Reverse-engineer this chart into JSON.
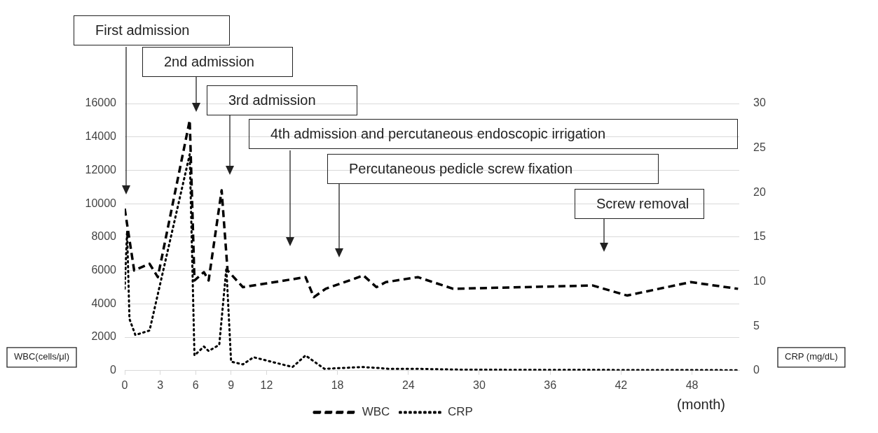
{
  "chart_data": {
    "type": "line",
    "xlabel": "(month)",
    "ylabel": "WBC(cells/μl)",
    "y2label": "CRP (mg/dL)",
    "xlim": [
      0,
      52
    ],
    "xticks": [
      0,
      3,
      6,
      9,
      12,
      18,
      24,
      30,
      36,
      42,
      48
    ],
    "ylim": [
      0,
      16000
    ],
    "yticks": [
      0,
      2000,
      4000,
      6000,
      8000,
      10000,
      12000,
      14000,
      16000
    ],
    "y2lim": [
      0,
      30
    ],
    "y2ticks": [
      0,
      5,
      10,
      15,
      20,
      25,
      30
    ],
    "grid": "y",
    "legend": "bottom",
    "marker": "none",
    "series": [
      {
        "name": "WBC",
        "color": "#000000",
        "line_style": "dashed",
        "axis": "y",
        "x": [
          0,
          0.8,
          2.1,
          2.8,
          5.5,
          5.9,
          6.7,
          7.1,
          8.2,
          8.7,
          10.0,
          15.3,
          16.0,
          17.0,
          20.2,
          21.3,
          22.1,
          24.8,
          27.8,
          39.6,
          42.5,
          47.9,
          51.9
        ],
        "values": [
          9700,
          6000,
          6400,
          5600,
          15000,
          5400,
          5900,
          5400,
          10800,
          6000,
          5000,
          5600,
          4400,
          4900,
          5700,
          5000,
          5300,
          5600,
          4900,
          5100,
          4500,
          5300,
          4900
        ]
      },
      {
        "name": "CRP",
        "color": "#000000",
        "line_style": "dotted",
        "axis": "y2",
        "x": [
          0,
          0.2,
          0.4,
          0.9,
          2.1,
          5.5,
          5.9,
          6.7,
          7.1,
          8.0,
          8.6,
          9.0,
          10.0,
          10.9,
          14.2,
          15.3,
          16.9,
          20.1,
          21.4,
          22.3,
          24.8,
          28.6,
          51.9
        ],
        "values": [
          9.2,
          15.7,
          5.8,
          4.0,
          4.5,
          24.3,
          1.7,
          2.7,
          2.2,
          2.9,
          11.5,
          1.0,
          0.7,
          1.5,
          0.4,
          1.7,
          0.2,
          0.4,
          0.3,
          0.2,
          0.2,
          0.1,
          0.05
        ]
      }
    ],
    "annotations": [
      "First admission",
      "2nd admission",
      "3rd admission",
      "4th admission and percutaneous endoscopic irrigation",
      "Percutaneous pedicle screw fixation",
      "Screw removal"
    ]
  }
}
